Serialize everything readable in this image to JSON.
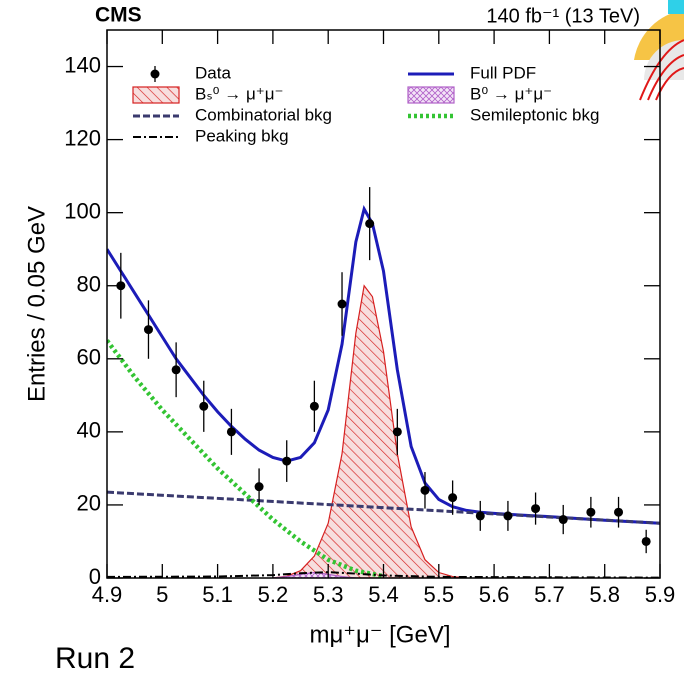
{
  "chart_data": {
    "type": "physics-fit",
    "experiment": "CMS",
    "luminosity": "140 fb⁻¹ (13 TeV)",
    "xlabel": "mμ⁺μ⁻ [GeV]",
    "ylabel": "Entries / 0.05 GeV",
    "caption": "Run 2",
    "xlim": [
      4.9,
      5.9
    ],
    "ylim": [
      0,
      150
    ],
    "xticks": [
      4.9,
      5,
      5.1,
      5.2,
      5.3,
      5.4,
      5.5,
      5.6,
      5.7,
      5.8,
      5.9
    ],
    "yticks": [
      0,
      20,
      40,
      60,
      80,
      100,
      120,
      140
    ],
    "legend": "upper",
    "series": [
      {
        "name": "Data",
        "kind": "points",
        "color": "#000000",
        "x": [
          4.925,
          4.975,
          5.025,
          5.075,
          5.125,
          5.175,
          5.225,
          5.275,
          5.325,
          5.375,
          5.425,
          5.475,
          5.525,
          5.575,
          5.625,
          5.675,
          5.725,
          5.775,
          5.825,
          5.875
        ],
        "values": [
          80,
          68,
          57,
          47,
          40,
          25,
          32,
          47,
          75,
          97,
          40,
          24,
          22,
          17,
          17,
          19,
          16,
          18,
          18,
          10
        ],
        "errors": [
          9,
          8,
          7.5,
          7,
          6.3,
          5,
          5.7,
          7,
          8.7,
          10,
          6.3,
          5,
          4.7,
          4.1,
          4.1,
          4.4,
          4,
          4.2,
          4.2,
          3.2
        ]
      },
      {
        "name": "Full PDF",
        "kind": "line",
        "style": "solid",
        "color": "#1c1cb8",
        "x": [
          4.9,
          4.925,
          4.95,
          4.975,
          5.0,
          5.025,
          5.05,
          5.075,
          5.1,
          5.125,
          5.15,
          5.175,
          5.2,
          5.225,
          5.25,
          5.275,
          5.3,
          5.325,
          5.35,
          5.365,
          5.38,
          5.4,
          5.425,
          5.45,
          5.475,
          5.5,
          5.525,
          5.55,
          5.575,
          5.6,
          5.65,
          5.7,
          5.75,
          5.8,
          5.85,
          5.9
        ],
        "values": [
          90,
          84,
          78,
          72,
          66,
          60,
          55,
          50,
          45.5,
          41.5,
          38,
          35,
          33,
          32,
          33,
          37,
          46,
          64,
          92,
          101,
          97,
          84,
          57,
          36,
          26,
          21.5,
          19.5,
          18.5,
          18,
          17.7,
          17.2,
          16.8,
          16.3,
          15.8,
          15.4,
          15
        ]
      },
      {
        "name": "Bₛ⁰ → μ⁺μ⁻",
        "kind": "area",
        "fill": "hatch",
        "color": "#d62020",
        "x": [
          5.2,
          5.225,
          5.25,
          5.275,
          5.3,
          5.325,
          5.35,
          5.365,
          5.38,
          5.4,
          5.425,
          5.45,
          5.475,
          5.5,
          5.525,
          5.55
        ],
        "values": [
          0,
          0.5,
          2,
          6,
          15,
          34,
          67,
          80,
          77,
          62,
          34,
          14,
          5,
          1.5,
          0.4,
          0
        ]
      },
      {
        "name": "B⁰ → μ⁺μ⁻",
        "kind": "area",
        "fill": "crosshatch",
        "color": "#b060c8",
        "x": [
          5.2,
          5.225,
          5.25,
          5.275,
          5.3,
          5.325,
          5.35
        ],
        "values": [
          0,
          0.4,
          1,
          1.5,
          1,
          0.4,
          0
        ]
      },
      {
        "name": "Combinatorial bkg",
        "kind": "line",
        "style": "dashed",
        "color": "#3a3a6e",
        "x": [
          4.9,
          5.9
        ],
        "values": [
          23.5,
          15
        ]
      },
      {
        "name": "Semileptonic bkg",
        "kind": "line",
        "style": "dotted",
        "color": "#33c433",
        "x": [
          4.9,
          4.95,
          5.0,
          5.05,
          5.1,
          5.15,
          5.2,
          5.25,
          5.3,
          5.35,
          5.4
        ],
        "values": [
          65,
          55,
          46,
          38,
          30,
          23,
          16,
          10,
          5,
          2,
          0.5
        ]
      },
      {
        "name": "Peaking bkg",
        "kind": "line",
        "style": "dashdot",
        "color": "#000000",
        "x": [
          4.9,
          5.1,
          5.2,
          5.25,
          5.3,
          5.35,
          5.4,
          5.5,
          5.9
        ],
        "values": [
          0.3,
          0.4,
          0.8,
          1.3,
          1.6,
          1.2,
          0.7,
          0.3,
          0.1
        ]
      }
    ]
  }
}
